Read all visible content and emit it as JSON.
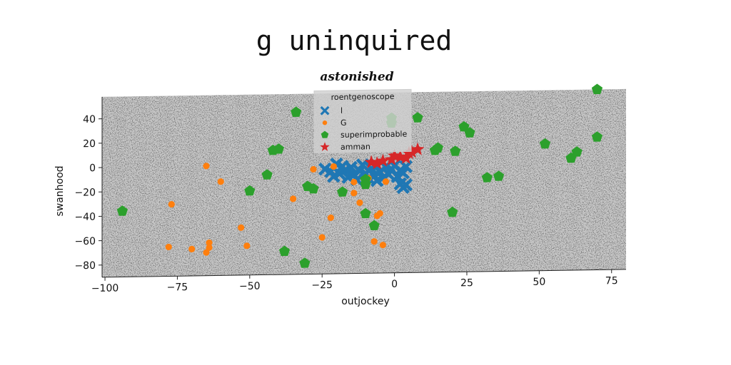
{
  "chart_data": {
    "type": "scatter",
    "title": "g uninquired",
    "subtitle": "astonished",
    "xlabel": "outjockey",
    "ylabel": "swanhood",
    "xlim": [
      -101,
      80
    ],
    "ylim": [
      -90,
      58
    ],
    "xticks": [
      -100,
      -75,
      -50,
      -25,
      0,
      25,
      50,
      75
    ],
    "yticks": [
      40,
      20,
      0,
      -20,
      -40,
      -60,
      -80
    ],
    "grid": false,
    "background": "#808080",
    "legend": {
      "title": "roentgenoscope",
      "placement": "top-center"
    },
    "series": [
      {
        "name": "l",
        "marker": "x",
        "color": "#1f77b4",
        "points": [
          [
            -24,
            -4
          ],
          [
            -22,
            -6
          ],
          [
            -20,
            0
          ],
          [
            -19,
            -8
          ],
          [
            -17,
            -5
          ],
          [
            -15,
            -3
          ],
          [
            -14,
            -9
          ],
          [
            -12,
            -6
          ],
          [
            -11,
            -1
          ],
          [
            -10,
            -8
          ],
          [
            -9,
            -12
          ],
          [
            -8,
            -4
          ],
          [
            -7,
            -10
          ],
          [
            -6,
            -2
          ],
          [
            -5,
            -7
          ],
          [
            -4,
            -12
          ],
          [
            -3,
            -3
          ],
          [
            -2,
            -9
          ],
          [
            -1,
            -5
          ],
          [
            0,
            -2
          ],
          [
            1,
            -11
          ],
          [
            2,
            -6
          ],
          [
            3,
            -8
          ],
          [
            4,
            -3
          ],
          [
            -18,
            -2
          ],
          [
            -16,
            -11
          ],
          [
            -13,
            -13
          ],
          [
            2,
            -17
          ],
          [
            4,
            -18
          ],
          [
            3,
            -20
          ],
          [
            -21,
            -10
          ],
          [
            -6,
            -14
          ]
        ]
      },
      {
        "name": "G",
        "marker": "o",
        "color": "#ff7f0e",
        "points": [
          [
            -65,
            0
          ],
          [
            -60,
            -13
          ],
          [
            -77,
            -31
          ],
          [
            -35,
            -28
          ],
          [
            -22,
            -44
          ],
          [
            -14,
            -24
          ],
          [
            -12,
            -32
          ],
          [
            -5,
            -41
          ],
          [
            -6,
            -43
          ],
          [
            -53,
            -51
          ],
          [
            -64,
            -63
          ],
          [
            -64,
            -67
          ],
          [
            -65,
            -71
          ],
          [
            -78,
            -66
          ],
          [
            -70,
            -68
          ],
          [
            -51,
            -66
          ],
          [
            -25,
            -60
          ],
          [
            -7,
            -64
          ],
          [
            -4,
            -67
          ],
          [
            -3,
            -15
          ],
          [
            -28,
            -4
          ],
          [
            -21,
            -2
          ],
          [
            -14,
            -15
          ],
          [
            -9,
            -12
          ]
        ]
      },
      {
        "name": "superimprobable",
        "marker": "pentagon",
        "color": "#2ca02c",
        "points": [
          [
            -94,
            -36
          ],
          [
            -34,
            43
          ],
          [
            -42,
            12
          ],
          [
            -40,
            13
          ],
          [
            -44,
            -8
          ],
          [
            -50,
            -21
          ],
          [
            -30,
            -18
          ],
          [
            -28,
            -20
          ],
          [
            -18,
            -23
          ],
          [
            -10,
            -13
          ],
          [
            -10,
            -17
          ],
          [
            -10,
            -41
          ],
          [
            -7,
            -51
          ],
          [
            -38,
            -71
          ],
          [
            -31,
            -81
          ],
          [
            8,
            37
          ],
          [
            -1,
            37
          ],
          [
            -1,
            33
          ],
          [
            15,
            12
          ],
          [
            14,
            10
          ],
          [
            21,
            9
          ],
          [
            24,
            29
          ],
          [
            26,
            24
          ],
          [
            20,
            -41
          ],
          [
            32,
            -13
          ],
          [
            36,
            -12
          ],
          [
            52,
            14
          ],
          [
            61,
            2
          ],
          [
            63,
            7
          ],
          [
            70,
            19
          ],
          [
            70,
            58
          ]
        ]
      },
      {
        "name": "amman",
        "marker": "*",
        "color": "#d62728",
        "points": [
          [
            -8,
            1
          ],
          [
            -4,
            2
          ],
          [
            -1,
            3
          ],
          [
            2,
            5
          ],
          [
            5,
            8
          ],
          [
            8,
            11
          ],
          [
            -6,
            0
          ],
          [
            0,
            6
          ],
          [
            4,
            4
          ],
          [
            6,
            9
          ]
        ]
      }
    ]
  }
}
